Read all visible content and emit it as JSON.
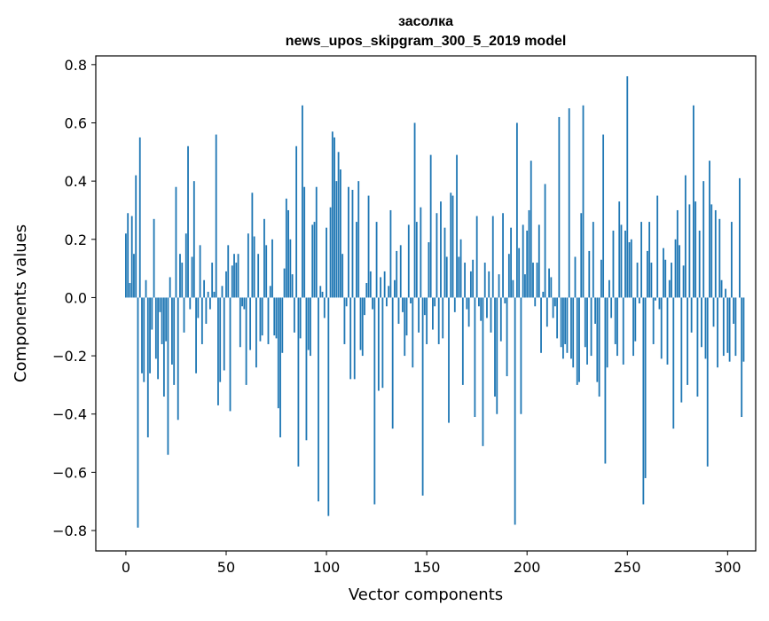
{
  "chart_data": {
    "type": "bar",
    "title": "засолка",
    "subtitle": "news_upos_skipgram_300_5_2019 model",
    "xlabel": "Vector components",
    "ylabel": "Components values",
    "xlim": [
      -15,
      314
    ],
    "ylim": [
      -0.87,
      0.83
    ],
    "x_ticks": [
      0,
      50,
      100,
      150,
      200,
      250,
      300
    ],
    "x_tick_labels": [
      "0",
      "50",
      "100",
      "150",
      "200",
      "250",
      "300"
    ],
    "y_ticks": [
      -0.8,
      -0.6,
      -0.4,
      -0.2,
      0.0,
      0.2,
      0.4,
      0.6,
      0.8
    ],
    "y_tick_labels": [
      "−0.8",
      "−0.6",
      "−0.4",
      "−0.2",
      "0.0",
      "0.2",
      "0.4",
      "0.6",
      "0.8"
    ],
    "bar_color": "#1f77b4",
    "grid": false,
    "values": [
      0.22,
      0.29,
      0.05,
      0.28,
      0.15,
      0.42,
      -0.79,
      0.55,
      -0.26,
      -0.29,
      0.06,
      -0.48,
      -0.26,
      -0.11,
      0.27,
      -0.21,
      -0.28,
      -0.05,
      -0.16,
      -0.34,
      -0.15,
      -0.54,
      0.07,
      -0.23,
      -0.3,
      0.38,
      -0.42,
      0.15,
      0.12,
      -0.12,
      0.22,
      0.52,
      -0.04,
      0.14,
      0.4,
      -0.26,
      -0.07,
      0.18,
      -0.16,
      0.06,
      -0.09,
      0.02,
      -0.04,
      0.12,
      0.02,
      0.56,
      -0.37,
      -0.29,
      0.04,
      -0.25,
      0.09,
      0.18,
      -0.39,
      0.11,
      0.15,
      0.12,
      0.15,
      -0.17,
      -0.03,
      -0.04,
      -0.3,
      0.22,
      -0.18,
      0.36,
      0.21,
      -0.24,
      0.15,
      -0.15,
      -0.13,
      0.27,
      0.18,
      -0.16,
      0.04,
      0.2,
      -0.13,
      -0.14,
      -0.38,
      -0.48,
      -0.19,
      0.1,
      0.34,
      0.3,
      0.2,
      0.08,
      -0.12,
      0.52,
      -0.58,
      -0.14,
      0.66,
      0.38,
      -0.49,
      -0.18,
      -0.2,
      0.25,
      0.26,
      0.38,
      -0.7,
      0.04,
      0.02,
      -0.07,
      0.24,
      -0.75,
      0.31,
      0.57,
      0.55,
      0.4,
      0.5,
      0.44,
      0.15,
      -0.16,
      -0.03,
      0.38,
      -0.28,
      0.37,
      -0.28,
      0.26,
      0.4,
      -0.18,
      -0.2,
      -0.06,
      0.05,
      0.35,
      0.09,
      -0.04,
      -0.71,
      0.26,
      -0.32,
      0.07,
      -0.31,
      0.09,
      -0.03,
      0.04,
      0.3,
      -0.45,
      0.06,
      0.16,
      -0.09,
      0.18,
      -0.05,
      -0.2,
      -0.13,
      0.25,
      -0.02,
      -0.24,
      0.6,
      0.26,
      -0.12,
      0.31,
      -0.68,
      -0.06,
      -0.16,
      0.19,
      0.49,
      -0.11,
      -0.03,
      0.29,
      -0.16,
      0.33,
      -0.14,
      0.24,
      0.14,
      -0.43,
      0.36,
      0.35,
      -0.05,
      0.49,
      0.14,
      0.2,
      -0.3,
      0.12,
      -0.04,
      -0.1,
      0.09,
      0.13,
      -0.41,
      0.28,
      -0.03,
      -0.08,
      -0.51,
      0.12,
      -0.07,
      0.09,
      -0.12,
      0.28,
      -0.34,
      -0.4,
      0.08,
      -0.15,
      0.29,
      -0.02,
      -0.27,
      0.15,
      0.24,
      0.06,
      -0.78,
      0.6,
      0.17,
      -0.4,
      0.25,
      0.08,
      0.23,
      0.3,
      0.47,
      0.12,
      -0.03,
      0.12,
      0.25,
      -0.19,
      0.02,
      0.39,
      -0.1,
      0.1,
      0.07,
      -0.07,
      -0.03,
      -0.14,
      0.62,
      -0.17,
      -0.21,
      -0.16,
      -0.19,
      0.65,
      -0.21,
      -0.24,
      0.14,
      -0.3,
      -0.29,
      0.29,
      0.66,
      -0.17,
      -0.23,
      0.16,
      -0.2,
      0.26,
      -0.09,
      -0.29,
      -0.34,
      0.13,
      0.56,
      -0.57,
      -0.24,
      0.06,
      -0.07,
      0.23,
      -0.16,
      -0.2,
      0.33,
      0.25,
      -0.23,
      0.23,
      0.76,
      0.19,
      0.2,
      -0.2,
      -0.15,
      0.12,
      -0.02,
      0.26,
      -0.71,
      -0.62,
      0.16,
      0.26,
      0.12,
      -0.16,
      -0.01,
      0.35,
      -0.04,
      -0.21,
      0.17,
      0.13,
      -0.23,
      0.06,
      0.12,
      -0.45,
      0.2,
      0.3,
      0.18,
      -0.36,
      0.11,
      0.42,
      -0.3,
      0.32,
      -0.12,
      0.66,
      0.33,
      -0.34,
      0.23,
      -0.17,
      0.4,
      -0.21,
      -0.58,
      0.47,
      0.32,
      -0.1,
      0.3,
      -0.24,
      0.27,
      0.06,
      -0.2,
      0.03,
      -0.19,
      -0.22,
      0.26,
      -0.09,
      -0.2,
      0.0,
      0.41,
      -0.41,
      -0.22
    ]
  }
}
